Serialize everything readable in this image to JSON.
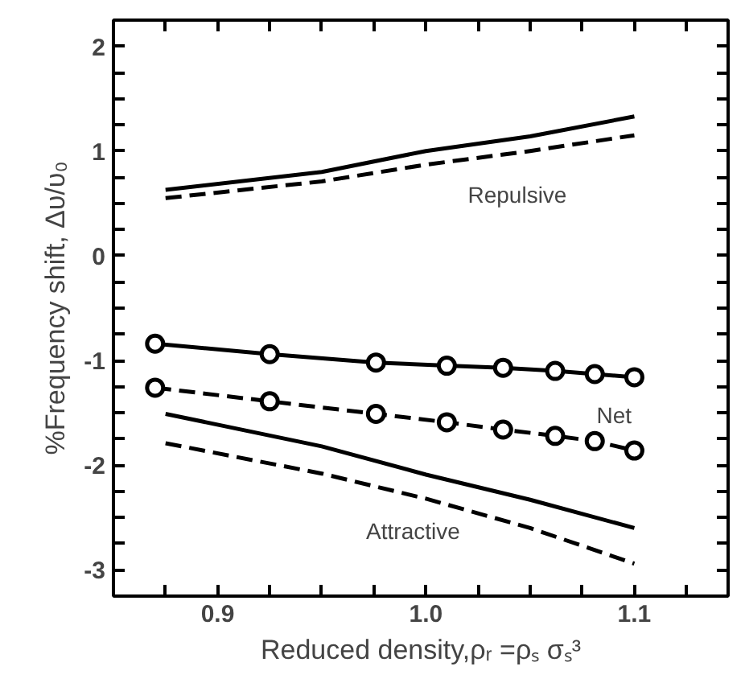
{
  "chart_data": {
    "type": "line",
    "xlabel": "Reduced density,ρᵣ =ρₛ σₛ³",
    "ylabel": "%Frequency shift, Δυ/υ₀",
    "xlim": [
      0.85,
      1.145
    ],
    "ylim": [
      -3.25,
      2.25
    ],
    "xticks": [
      {
        "value": 0.875,
        "label": null
      },
      {
        "value": 0.9,
        "label": "0.9"
      },
      {
        "value": 0.925,
        "label": null
      },
      {
        "value": 0.95,
        "label": null
      },
      {
        "value": 0.975,
        "label": null
      },
      {
        "value": 1.0,
        "label": "1.0"
      },
      {
        "value": 1.025,
        "label": null
      },
      {
        "value": 1.05,
        "label": null
      },
      {
        "value": 1.075,
        "label": null
      },
      {
        "value": 1.1,
        "label": "1.1"
      },
      {
        "value": 1.125,
        "label": null
      }
    ],
    "yticks": [
      {
        "value": -3.25,
        "label": null
      },
      -3,
      {
        "value": -2.75,
        "label": null
      },
      {
        "value": -2.5,
        "label": null
      },
      {
        "value": -2.25,
        "label": null
      },
      -2,
      {
        "value": -1.75,
        "label": null
      },
      {
        "value": -1.5,
        "label": null
      },
      {
        "value": -1.25,
        "label": null
      },
      -1,
      {
        "value": -0.75,
        "label": null
      },
      {
        "value": -0.5,
        "label": null
      },
      {
        "value": -0.25,
        "label": null
      },
      0,
      {
        "value": 0.25,
        "label": null
      },
      {
        "value": 0.5,
        "label": null
      },
      {
        "value": 0.75,
        "label": null
      },
      1,
      {
        "value": 1.25,
        "label": null
      },
      {
        "value": 1.5,
        "label": null
      },
      {
        "value": 1.75,
        "label": null
      },
      2
    ],
    "grid": false,
    "series": [
      {
        "color": "#000000",
        "line_style": "solid",
        "marker": "none",
        "x": [
          0.875,
          0.95,
          1.0,
          1.05,
          1.1
        ],
        "values": [
          0.63,
          0.8,
          1.0,
          1.14,
          1.33
        ]
      },
      {
        "color": "#000000",
        "line_style": "dashed",
        "marker": "none",
        "x": [
          0.875,
          0.95,
          1.0,
          1.05,
          1.1
        ],
        "values": [
          0.55,
          0.71,
          0.87,
          1.0,
          1.15
        ]
      },
      {
        "color": "#000000",
        "line_style": "solid",
        "marker": "circle",
        "x": [
          0.87,
          0.925,
          0.976,
          1.01,
          1.037,
          1.062,
          1.081,
          1.1
        ],
        "values": [
          -0.84,
          -0.94,
          -1.02,
          -1.05,
          -1.07,
          -1.1,
          -1.13,
          -1.16
        ]
      },
      {
        "color": "#000000",
        "line_style": "dashed",
        "marker": "circle",
        "x": [
          0.87,
          0.925,
          0.976,
          1.01,
          1.037,
          1.062,
          1.081,
          1.1
        ],
        "values": [
          -1.26,
          -1.39,
          -1.51,
          -1.59,
          -1.66,
          -1.72,
          -1.77,
          -1.86
        ]
      },
      {
        "color": "#000000",
        "line_style": "solid",
        "marker": "none",
        "x": [
          0.875,
          0.95,
          1.0,
          1.05,
          1.1
        ],
        "values": [
          -1.51,
          -1.82,
          -2.09,
          -2.33,
          -2.6
        ]
      },
      {
        "color": "#000000",
        "line_style": "dashed",
        "marker": "none",
        "x": [
          0.875,
          0.95,
          1.0,
          1.05,
          1.1
        ],
        "values": [
          -1.79,
          -2.08,
          -2.32,
          -2.6,
          -2.94
        ]
      }
    ],
    "annotations": [
      "Repulsive",
      "Net",
      "Attractive"
    ]
  }
}
